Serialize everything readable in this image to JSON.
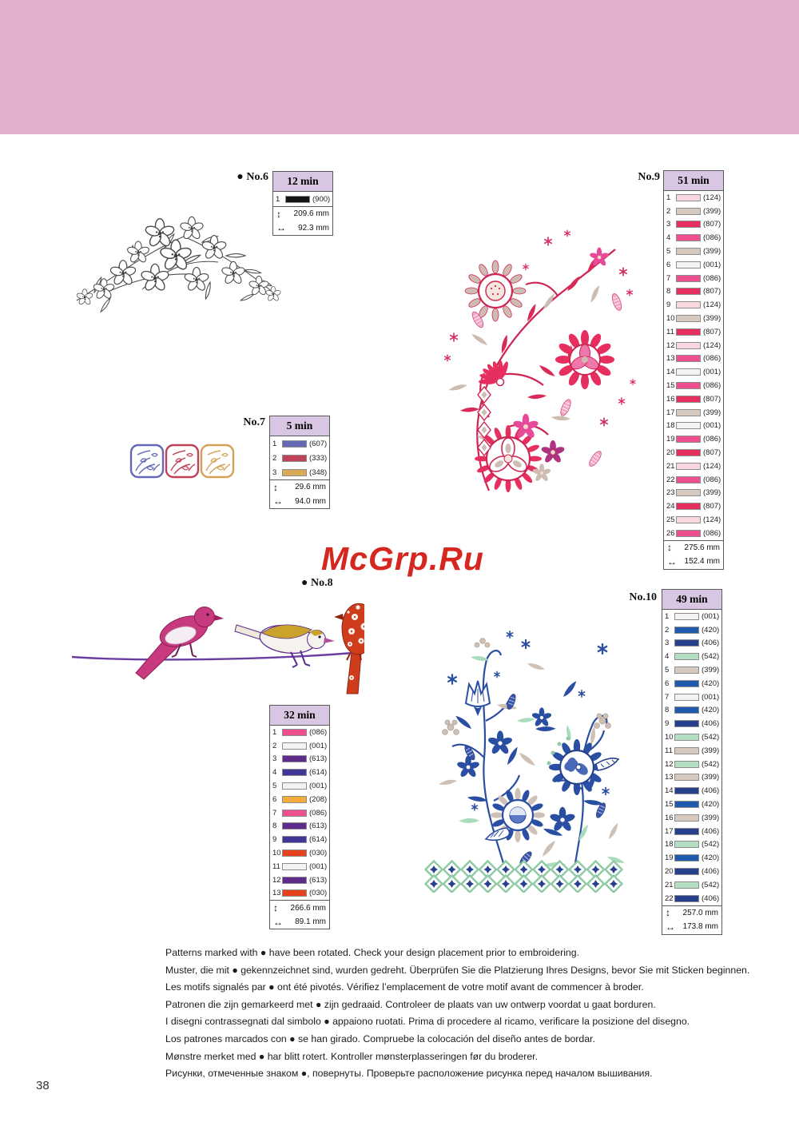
{
  "page": {
    "number": "38",
    "watermark": "McGrp.Ru",
    "band_color": "#e3afce",
    "header_bg": "#d9c6e2"
  },
  "tables": {
    "no6": {
      "marker": "● ",
      "label": "No.6",
      "time": "12 min",
      "height_mm": "209.6 mm",
      "width_mm": "92.3 mm",
      "threads": [
        {
          "n": "1",
          "code": "(900)",
          "hex": "#151515"
        }
      ]
    },
    "no7": {
      "marker": "",
      "label": "No.7",
      "time": "5 min",
      "height_mm": "29.6 mm",
      "width_mm": "94.0 mm",
      "threads": [
        {
          "n": "1",
          "code": "(607)",
          "hex": "#6569b5"
        },
        {
          "n": "2",
          "code": "(333)",
          "hex": "#c04259"
        },
        {
          "n": "3",
          "code": "(348)",
          "hex": "#dbaa58"
        }
      ]
    },
    "no8": {
      "marker": "● ",
      "label": "No.8",
      "time": "32 min",
      "height_mm": "266.6 mm",
      "width_mm": "89.1 mm",
      "threads": [
        {
          "n": "1",
          "code": "(086)",
          "hex": "#ee4f8f"
        },
        {
          "n": "2",
          "code": "(001)",
          "hex": "#f4f3f2"
        },
        {
          "n": "3",
          "code": "(613)",
          "hex": "#5e2b8d"
        },
        {
          "n": "4",
          "code": "(614)",
          "hex": "#3f3697"
        },
        {
          "n": "5",
          "code": "(001)",
          "hex": "#f4f3f2"
        },
        {
          "n": "6",
          "code": "(208)",
          "hex": "#f3ab3c"
        },
        {
          "n": "7",
          "code": "(086)",
          "hex": "#ee4f8f"
        },
        {
          "n": "8",
          "code": "(613)",
          "hex": "#5e2b8d"
        },
        {
          "n": "9",
          "code": "(614)",
          "hex": "#3f3697"
        },
        {
          "n": "10",
          "code": "(030)",
          "hex": "#e8421d"
        },
        {
          "n": "11",
          "code": "(001)",
          "hex": "#f4f3f2"
        },
        {
          "n": "12",
          "code": "(613)",
          "hex": "#5e2b8d"
        },
        {
          "n": "13",
          "code": "(030)",
          "hex": "#e8421d"
        }
      ]
    },
    "no9": {
      "marker": "",
      "label": "No.9",
      "time": "51 min",
      "height_mm": "275.6 mm",
      "width_mm": "152.4 mm",
      "threads": [
        {
          "n": "1",
          "code": "(124)",
          "hex": "#f8d7de"
        },
        {
          "n": "2",
          "code": "(399)",
          "hex": "#d7c9bd"
        },
        {
          "n": "3",
          "code": "(807)",
          "hex": "#e62f5e"
        },
        {
          "n": "4",
          "code": "(086)",
          "hex": "#ee4f8f"
        },
        {
          "n": "5",
          "code": "(399)",
          "hex": "#d7c9bd"
        },
        {
          "n": "6",
          "code": "(001)",
          "hex": "#f4f3f2"
        },
        {
          "n": "7",
          "code": "(086)",
          "hex": "#ee4f8f"
        },
        {
          "n": "8",
          "code": "(807)",
          "hex": "#e62f5e"
        },
        {
          "n": "9",
          "code": "(124)",
          "hex": "#f8d7de"
        },
        {
          "n": "10",
          "code": "(399)",
          "hex": "#d7c9bd"
        },
        {
          "n": "11",
          "code": "(807)",
          "hex": "#e62f5e"
        },
        {
          "n": "12",
          "code": "(124)",
          "hex": "#f8d7de"
        },
        {
          "n": "13",
          "code": "(086)",
          "hex": "#ee4f8f"
        },
        {
          "n": "14",
          "code": "(001)",
          "hex": "#f4f3f2"
        },
        {
          "n": "15",
          "code": "(086)",
          "hex": "#ee4f8f"
        },
        {
          "n": "16",
          "code": "(807)",
          "hex": "#e62f5e"
        },
        {
          "n": "17",
          "code": "(399)",
          "hex": "#d7c9bd"
        },
        {
          "n": "18",
          "code": "(001)",
          "hex": "#f4f3f2"
        },
        {
          "n": "19",
          "code": "(086)",
          "hex": "#ee4f8f"
        },
        {
          "n": "20",
          "code": "(807)",
          "hex": "#e62f5e"
        },
        {
          "n": "21",
          "code": "(124)",
          "hex": "#f8d7de"
        },
        {
          "n": "22",
          "code": "(086)",
          "hex": "#ee4f8f"
        },
        {
          "n": "23",
          "code": "(399)",
          "hex": "#d7c9bd"
        },
        {
          "n": "24",
          "code": "(807)",
          "hex": "#e62f5e"
        },
        {
          "n": "25",
          "code": "(124)",
          "hex": "#f8d7de"
        },
        {
          "n": "26",
          "code": "(086)",
          "hex": "#ee4f8f"
        }
      ]
    },
    "no10": {
      "marker": "",
      "label": "No.10",
      "time": "49 min",
      "height_mm": "257.0 mm",
      "width_mm": "173.8 mm",
      "threads": [
        {
          "n": "1",
          "code": "(001)",
          "hex": "#f4f3f2"
        },
        {
          "n": "2",
          "code": "(420)",
          "hex": "#1f5aac"
        },
        {
          "n": "3",
          "code": "(406)",
          "hex": "#27408e"
        },
        {
          "n": "4",
          "code": "(542)",
          "hex": "#b5dfc3"
        },
        {
          "n": "5",
          "code": "(399)",
          "hex": "#d7c9bd"
        },
        {
          "n": "6",
          "code": "(420)",
          "hex": "#1f5aac"
        },
        {
          "n": "7",
          "code": "(001)",
          "hex": "#f4f3f2"
        },
        {
          "n": "8",
          "code": "(420)",
          "hex": "#1f5aac"
        },
        {
          "n": "9",
          "code": "(406)",
          "hex": "#27408e"
        },
        {
          "n": "10",
          "code": "(542)",
          "hex": "#b5dfc3"
        },
        {
          "n": "11",
          "code": "(399)",
          "hex": "#d7c9bd"
        },
        {
          "n": "12",
          "code": "(542)",
          "hex": "#b5dfc3"
        },
        {
          "n": "13",
          "code": "(399)",
          "hex": "#d7c9bd"
        },
        {
          "n": "14",
          "code": "(406)",
          "hex": "#27408e"
        },
        {
          "n": "15",
          "code": "(420)",
          "hex": "#1f5aac"
        },
        {
          "n": "16",
          "code": "(399)",
          "hex": "#d7c9bd"
        },
        {
          "n": "17",
          "code": "(406)",
          "hex": "#27408e"
        },
        {
          "n": "18",
          "code": "(542)",
          "hex": "#b5dfc3"
        },
        {
          "n": "19",
          "code": "(420)",
          "hex": "#1f5aac"
        },
        {
          "n": "20",
          "code": "(406)",
          "hex": "#27408e"
        },
        {
          "n": "21",
          "code": "(542)",
          "hex": "#b5dfc3"
        },
        {
          "n": "22",
          "code": "(406)",
          "hex": "#27408e"
        }
      ]
    }
  },
  "footer_notes": [
    "Patterns marked with ● have been rotated. Check your design placement prior to embroidering.",
    "Muster, die mit ● gekennzeichnet sind, wurden gedreht. Überprüfen Sie die Platzierung Ihres Designs, bevor Sie mit Sticken beginnen.",
    "Les motifs signalés par ● ont été pivotés. Vérifiez l’emplacement de votre motif avant de commencer à broder.",
    "Patronen die zijn gemarkeerd met ● zijn gedraaid. Controleer de plaats van uw ontwerp voordat u gaat borduren.",
    "I disegni contrassegnati dal simbolo ● appaiono ruotati. Prima di procedere al ricamo, verificare la posizione del disegno.",
    "Los patrones marcados con ● se han girado. Compruebe la colocación del diseño antes de bordar.",
    "Mønstre merket med ● har blitt rotert. Kontroller mønsterplasseringen før du broderer.",
    "Рисунки, отмеченные знаком ●, повернуты. Проверьте расположение рисунка перед началом вышивания."
  ]
}
